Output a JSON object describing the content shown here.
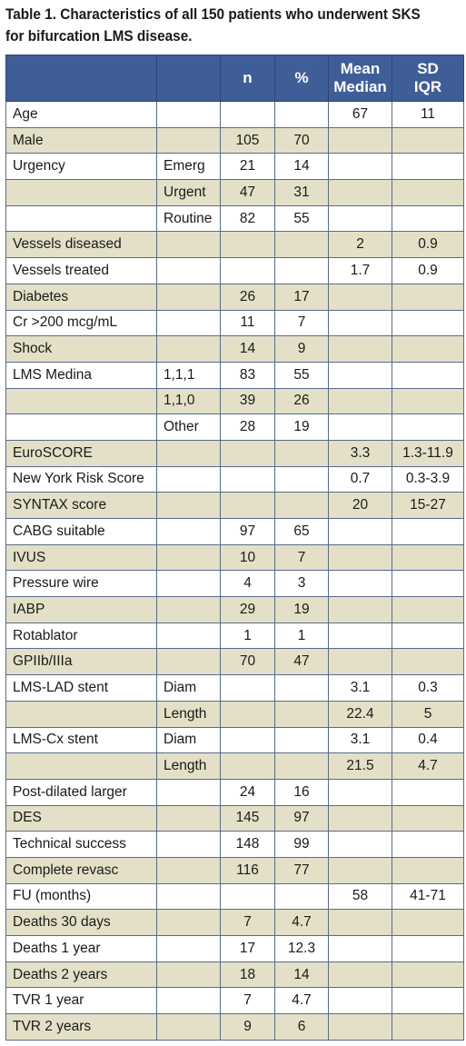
{
  "caption": {
    "line1": "Table 1. Characteristics of all 150 patients who underwent SKS",
    "line2": "for bifurcation LMS disease."
  },
  "header": {
    "col1": "",
    "col2": "",
    "n": "n",
    "pct": "%",
    "mean_line1": "Mean",
    "mean_line2": "Median",
    "sd_line1": "SD",
    "sd_line2": "IQR"
  },
  "rows": [
    {
      "label": "Age",
      "sub": "",
      "n": "",
      "pct": "",
      "mean": "67",
      "sd": "11"
    },
    {
      "label": "Male",
      "sub": "",
      "n": "105",
      "pct": "70",
      "mean": "",
      "sd": ""
    },
    {
      "label": "Urgency",
      "sub": "Emerg",
      "n": "21",
      "pct": "14",
      "mean": "",
      "sd": ""
    },
    {
      "label": "",
      "sub": "Urgent",
      "n": "47",
      "pct": "31",
      "mean": "",
      "sd": ""
    },
    {
      "label": "",
      "sub": "Routine",
      "n": "82",
      "pct": "55",
      "mean": "",
      "sd": ""
    },
    {
      "label": "Vessels diseased",
      "sub": "",
      "n": "",
      "pct": "",
      "mean": "2",
      "sd": "0.9"
    },
    {
      "label": "Vessels treated",
      "sub": "",
      "n": "",
      "pct": "",
      "mean": "1.7",
      "sd": "0.9"
    },
    {
      "label": "Diabetes",
      "sub": "",
      "n": "26",
      "pct": "17",
      "mean": "",
      "sd": ""
    },
    {
      "label": "Cr >200 mcg/mL",
      "sub": "",
      "n": "11",
      "pct": "7",
      "mean": "",
      "sd": ""
    },
    {
      "label": "Shock",
      "sub": "",
      "n": "14",
      "pct": "9",
      "mean": "",
      "sd": ""
    },
    {
      "label": "LMS Medina",
      "sub": "1,1,1",
      "n": "83",
      "pct": "55",
      "mean": "",
      "sd": ""
    },
    {
      "label": "",
      "sub": "1,1,0",
      "n": "39",
      "pct": "26",
      "mean": "",
      "sd": ""
    },
    {
      "label": "",
      "sub": "Other",
      "n": "28",
      "pct": "19",
      "mean": "",
      "sd": ""
    },
    {
      "label": "EuroSCORE",
      "sub": "",
      "n": "",
      "pct": "",
      "mean": "3.3",
      "sd": "1.3-11.9"
    },
    {
      "label": "New York Risk Score",
      "sub": "",
      "n": "",
      "pct": "",
      "mean": "0.7",
      "sd": "0.3-3.9"
    },
    {
      "label": "SYNTAX score",
      "sub": "",
      "n": "",
      "pct": "",
      "mean": "20",
      "sd": "15-27"
    },
    {
      "label": "CABG suitable",
      "sub": "",
      "n": "97",
      "pct": "65",
      "mean": "",
      "sd": ""
    },
    {
      "label": "IVUS",
      "sub": "",
      "n": "10",
      "pct": "7",
      "mean": "",
      "sd": ""
    },
    {
      "label": "Pressure wire",
      "sub": "",
      "n": "4",
      "pct": "3",
      "mean": "",
      "sd": ""
    },
    {
      "label": "IABP",
      "sub": "",
      "n": "29",
      "pct": "19",
      "mean": "",
      "sd": ""
    },
    {
      "label": "Rotablator",
      "sub": "",
      "n": "1",
      "pct": "1",
      "mean": "",
      "sd": ""
    },
    {
      "label": "GPIIb/IIIa",
      "sub": "",
      "n": "70",
      "pct": "47",
      "mean": "",
      "sd": ""
    },
    {
      "label": "LMS-LAD stent",
      "sub": "Diam",
      "n": "",
      "pct": "",
      "mean": "3.1",
      "sd": "0.3"
    },
    {
      "label": "",
      "sub": "Length",
      "n": "",
      "pct": "",
      "mean": "22.4",
      "sd": "5"
    },
    {
      "label": "LMS-Cx stent",
      "sub": "Diam",
      "n": "",
      "pct": "",
      "mean": "3.1",
      "sd": "0.4"
    },
    {
      "label": "",
      "sub": "Length",
      "n": "",
      "pct": "",
      "mean": "21.5",
      "sd": "4.7"
    },
    {
      "label": "Post-dilated larger",
      "sub": "",
      "n": "24",
      "pct": "16",
      "mean": "",
      "sd": ""
    },
    {
      "label": "DES",
      "sub": "",
      "n": "145",
      "pct": "97",
      "mean": "",
      "sd": ""
    },
    {
      "label": "Technical success",
      "sub": "",
      "n": "148",
      "pct": "99",
      "mean": "",
      "sd": ""
    },
    {
      "label": "Complete revasc",
      "sub": "",
      "n": "116",
      "pct": "77",
      "mean": "",
      "sd": ""
    },
    {
      "label": "FU (months)",
      "sub": "",
      "n": "",
      "pct": "",
      "mean": "58",
      "sd": "41-71"
    },
    {
      "label": "Deaths 30 days",
      "sub": "",
      "n": "7",
      "pct": "4.7",
      "mean": "",
      "sd": ""
    },
    {
      "label": "Deaths 1 year",
      "sub": "",
      "n": "17",
      "pct": "12.3",
      "mean": "",
      "sd": ""
    },
    {
      "label": "Deaths 2 years",
      "sub": "",
      "n": "18",
      "pct": "14",
      "mean": "",
      "sd": ""
    },
    {
      "label": "TVR 1 year",
      "sub": "",
      "n": "7",
      "pct": "4.7",
      "mean": "",
      "sd": ""
    },
    {
      "label": "TVR 2 years",
      "sub": "",
      "n": "9",
      "pct": "6",
      "mean": "",
      "sd": ""
    }
  ],
  "colors": {
    "header_bg": "#3f5e97",
    "header_text": "#ffffff",
    "row_shade": "#e3e0c7",
    "row_plain": "#ffffff",
    "border": "#2e4676"
  }
}
